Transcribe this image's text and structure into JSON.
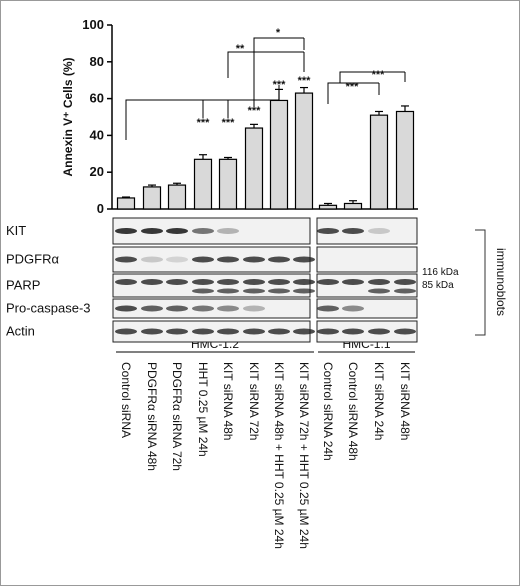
{
  "chart_data": {
    "type": "bar",
    "ylabel": "Annexin V⁺ Cells (%)",
    "ylim": [
      0,
      100
    ],
    "yticks": [
      0,
      20,
      40,
      60,
      80,
      100
    ],
    "color": "#d9d9d9",
    "groups": [
      {
        "label": "HMC-1.2",
        "categories": [
          "Control siRNA",
          "PDGFRα siRNA 48h",
          "PDGFRα siRNA 72h",
          "HHT 0.25 µM 24h",
          "KIT siRNA 48h",
          "KIT siRNA 72h",
          "KIT siRNA 48h + HHT 0.25 µM 24h",
          "KIT siRNA 72h + HHT 0.25 µM 24h"
        ],
        "values": [
          6,
          12,
          13,
          27,
          27,
          44,
          59,
          63
        ],
        "errors": [
          0.5,
          1,
          1,
          2.5,
          1,
          2,
          6,
          3
        ]
      },
      {
        "label": "HMC-1.1",
        "categories": [
          "Control siRNA 24h",
          "Control siRNA 48h",
          "KIT siRNA 24h",
          "KIT siRNA 48h"
        ],
        "values": [
          2,
          3,
          51,
          53
        ],
        "errors": [
          1,
          1.5,
          2,
          3
        ]
      }
    ],
    "annotations": [
      "***",
      "***",
      "***",
      "***",
      "***",
      "**",
      "*",
      "***",
      "***"
    ],
    "blots": {
      "rows": [
        "KIT",
        "PDGFRα",
        "PARP",
        "Pro-caspase-3",
        "Actin"
      ],
      "label": "immunoblots",
      "markers": [
        "116 kDa",
        "85 kDa"
      ]
    }
  }
}
